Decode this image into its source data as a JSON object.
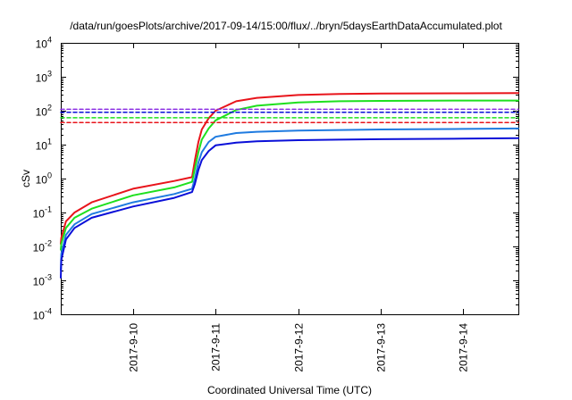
{
  "chart_data": {
    "type": "line",
    "title": "/data/run/goesPlots/archive/2017-09-14/15:00/flux/../bryn/5daysEarthDataAccumulated.plot",
    "xlabel": "Coordinated Universal Time (UTC)",
    "ylabel": "cSv",
    "yscale": "log",
    "ylim": [
      0.0001,
      10000
    ],
    "xlim": [
      "2017-09-09 03:00",
      "2017-09-14 16:00"
    ],
    "grid": false,
    "legend": "none",
    "y_ticks": [
      {
        "value": 0.0001,
        "base": "10",
        "exp": "-4"
      },
      {
        "value": 0.001,
        "base": "10",
        "exp": "-3"
      },
      {
        "value": 0.01,
        "base": "10",
        "exp": "-2"
      },
      {
        "value": 0.1,
        "base": "10",
        "exp": "-1"
      },
      {
        "value": 1,
        "base": "10",
        "exp": "0"
      },
      {
        "value": 10,
        "base": "10",
        "exp": "1"
      },
      {
        "value": 100,
        "base": "10",
        "exp": "2"
      },
      {
        "value": 1000,
        "base": "10",
        "exp": "3"
      },
      {
        "value": 10000,
        "base": "10",
        "exp": "4"
      }
    ],
    "x_ticks": [
      {
        "value": "2017-09-10 00:00",
        "label": "2017-9-10"
      },
      {
        "value": "2017-09-11 00:00",
        "label": "2017-9-11"
      },
      {
        "value": "2017-09-12 00:00",
        "label": "2017-9-12"
      },
      {
        "value": "2017-09-13 00:00",
        "label": "2017-9-13"
      },
      {
        "value": "2017-09-14 00:00",
        "label": "2017-9-14"
      }
    ],
    "series": [
      {
        "color": "#e8141b",
        "style": "solid",
        "x": [
          "2017-09-09 03:00",
          "2017-09-09 03:10",
          "2017-09-09 04:30",
          "2017-09-09 07:00",
          "2017-09-09 12:00",
          "2017-09-10 00:00",
          "2017-09-10 12:00",
          "2017-09-10 17:10",
          "2017-09-10 18:00",
          "2017-09-10 19:00",
          "2017-09-10 20:00",
          "2017-09-10 22:00",
          "2017-09-11 00:00",
          "2017-09-11 06:00",
          "2017-09-11 12:00",
          "2017-09-12 00:00",
          "2017-09-12 12:00",
          "2017-09-13 00:00",
          "2017-09-14 00:00",
          "2017-09-14 16:00"
        ],
        "y": [
          0.012,
          0.018,
          0.055,
          0.1,
          0.2,
          0.5,
          0.85,
          1.1,
          3.5,
          12,
          28,
          60,
          100,
          190,
          240,
          290,
          310,
          320,
          325,
          330
        ]
      },
      {
        "color": "#1ee01e",
        "style": "solid",
        "x": [
          "2017-09-09 03:00",
          "2017-09-09 03:10",
          "2017-09-09 04:30",
          "2017-09-09 07:00",
          "2017-09-09 12:00",
          "2017-09-10 00:00",
          "2017-09-10 12:00",
          "2017-09-10 17:10",
          "2017-09-10 18:00",
          "2017-09-10 19:00",
          "2017-09-10 20:00",
          "2017-09-10 22:00",
          "2017-09-11 00:00",
          "2017-09-11 06:00",
          "2017-09-11 12:00",
          "2017-09-12 00:00",
          "2017-09-12 12:00",
          "2017-09-13 00:00",
          "2017-09-14 00:00",
          "2017-09-14 16:00"
        ],
        "y": [
          0.008,
          0.012,
          0.035,
          0.07,
          0.13,
          0.32,
          0.55,
          0.8,
          2,
          6,
          14,
          30,
          52,
          105,
          140,
          175,
          190,
          195,
          200,
          200
        ]
      },
      {
        "color": "#1f7be0",
        "style": "solid",
        "x": [
          "2017-09-09 03:00",
          "2017-09-09 03:10",
          "2017-09-09 04:30",
          "2017-09-09 07:00",
          "2017-09-09 12:00",
          "2017-09-10 00:00",
          "2017-09-10 12:00",
          "2017-09-10 17:10",
          "2017-09-10 18:00",
          "2017-09-10 19:00",
          "2017-09-10 20:00",
          "2017-09-10 22:00",
          "2017-09-11 00:00",
          "2017-09-11 06:00",
          "2017-09-11 12:00",
          "2017-09-12 00:00",
          "2017-09-12 12:00",
          "2017-09-13 00:00",
          "2017-09-14 00:00",
          "2017-09-14 16:00"
        ],
        "y": [
          0.002,
          0.006,
          0.022,
          0.045,
          0.09,
          0.2,
          0.35,
          0.5,
          1,
          3,
          6,
          12,
          17,
          22,
          24,
          26,
          27,
          28,
          29,
          30
        ]
      },
      {
        "color": "#0a0fd8",
        "style": "solid",
        "x": [
          "2017-09-09 03:00",
          "2017-09-09 03:10",
          "2017-09-09 04:30",
          "2017-09-09 07:00",
          "2017-09-09 12:00",
          "2017-09-10 00:00",
          "2017-09-10 12:00",
          "2017-09-10 17:10",
          "2017-09-10 18:00",
          "2017-09-10 19:00",
          "2017-09-10 20:00",
          "2017-09-10 22:00",
          "2017-09-11 00:00",
          "2017-09-11 06:00",
          "2017-09-11 12:00",
          "2017-09-12 00:00",
          "2017-09-12 12:00",
          "2017-09-13 00:00",
          "2017-09-14 00:00",
          "2017-09-14 16:00"
        ],
        "y": [
          0.0012,
          0.004,
          0.016,
          0.035,
          0.07,
          0.15,
          0.27,
          0.4,
          0.7,
          1.8,
          3.5,
          6.5,
          9.5,
          11.5,
          12.5,
          13.5,
          14,
          14.5,
          15,
          15.5
        ]
      },
      {
        "color": "#e8141b",
        "style": "dashed",
        "x": [
          "2017-09-09 03:00",
          "2017-09-14 16:00"
        ],
        "y": [
          45,
          45
        ]
      },
      {
        "color": "#1ee01e",
        "style": "dashed",
        "x": [
          "2017-09-09 03:00",
          "2017-09-14 16:00"
        ],
        "y": [
          62,
          62
        ]
      },
      {
        "color": "#0a0fd8",
        "style": "dashed",
        "x": [
          "2017-09-09 03:00",
          "2017-09-14 16:00"
        ],
        "y": [
          90,
          90
        ]
      },
      {
        "color": "#8a2be2",
        "style": "dashed",
        "x": [
          "2017-09-09 03:00",
          "2017-09-14 16:00"
        ],
        "y": [
          110,
          110
        ]
      }
    ]
  }
}
